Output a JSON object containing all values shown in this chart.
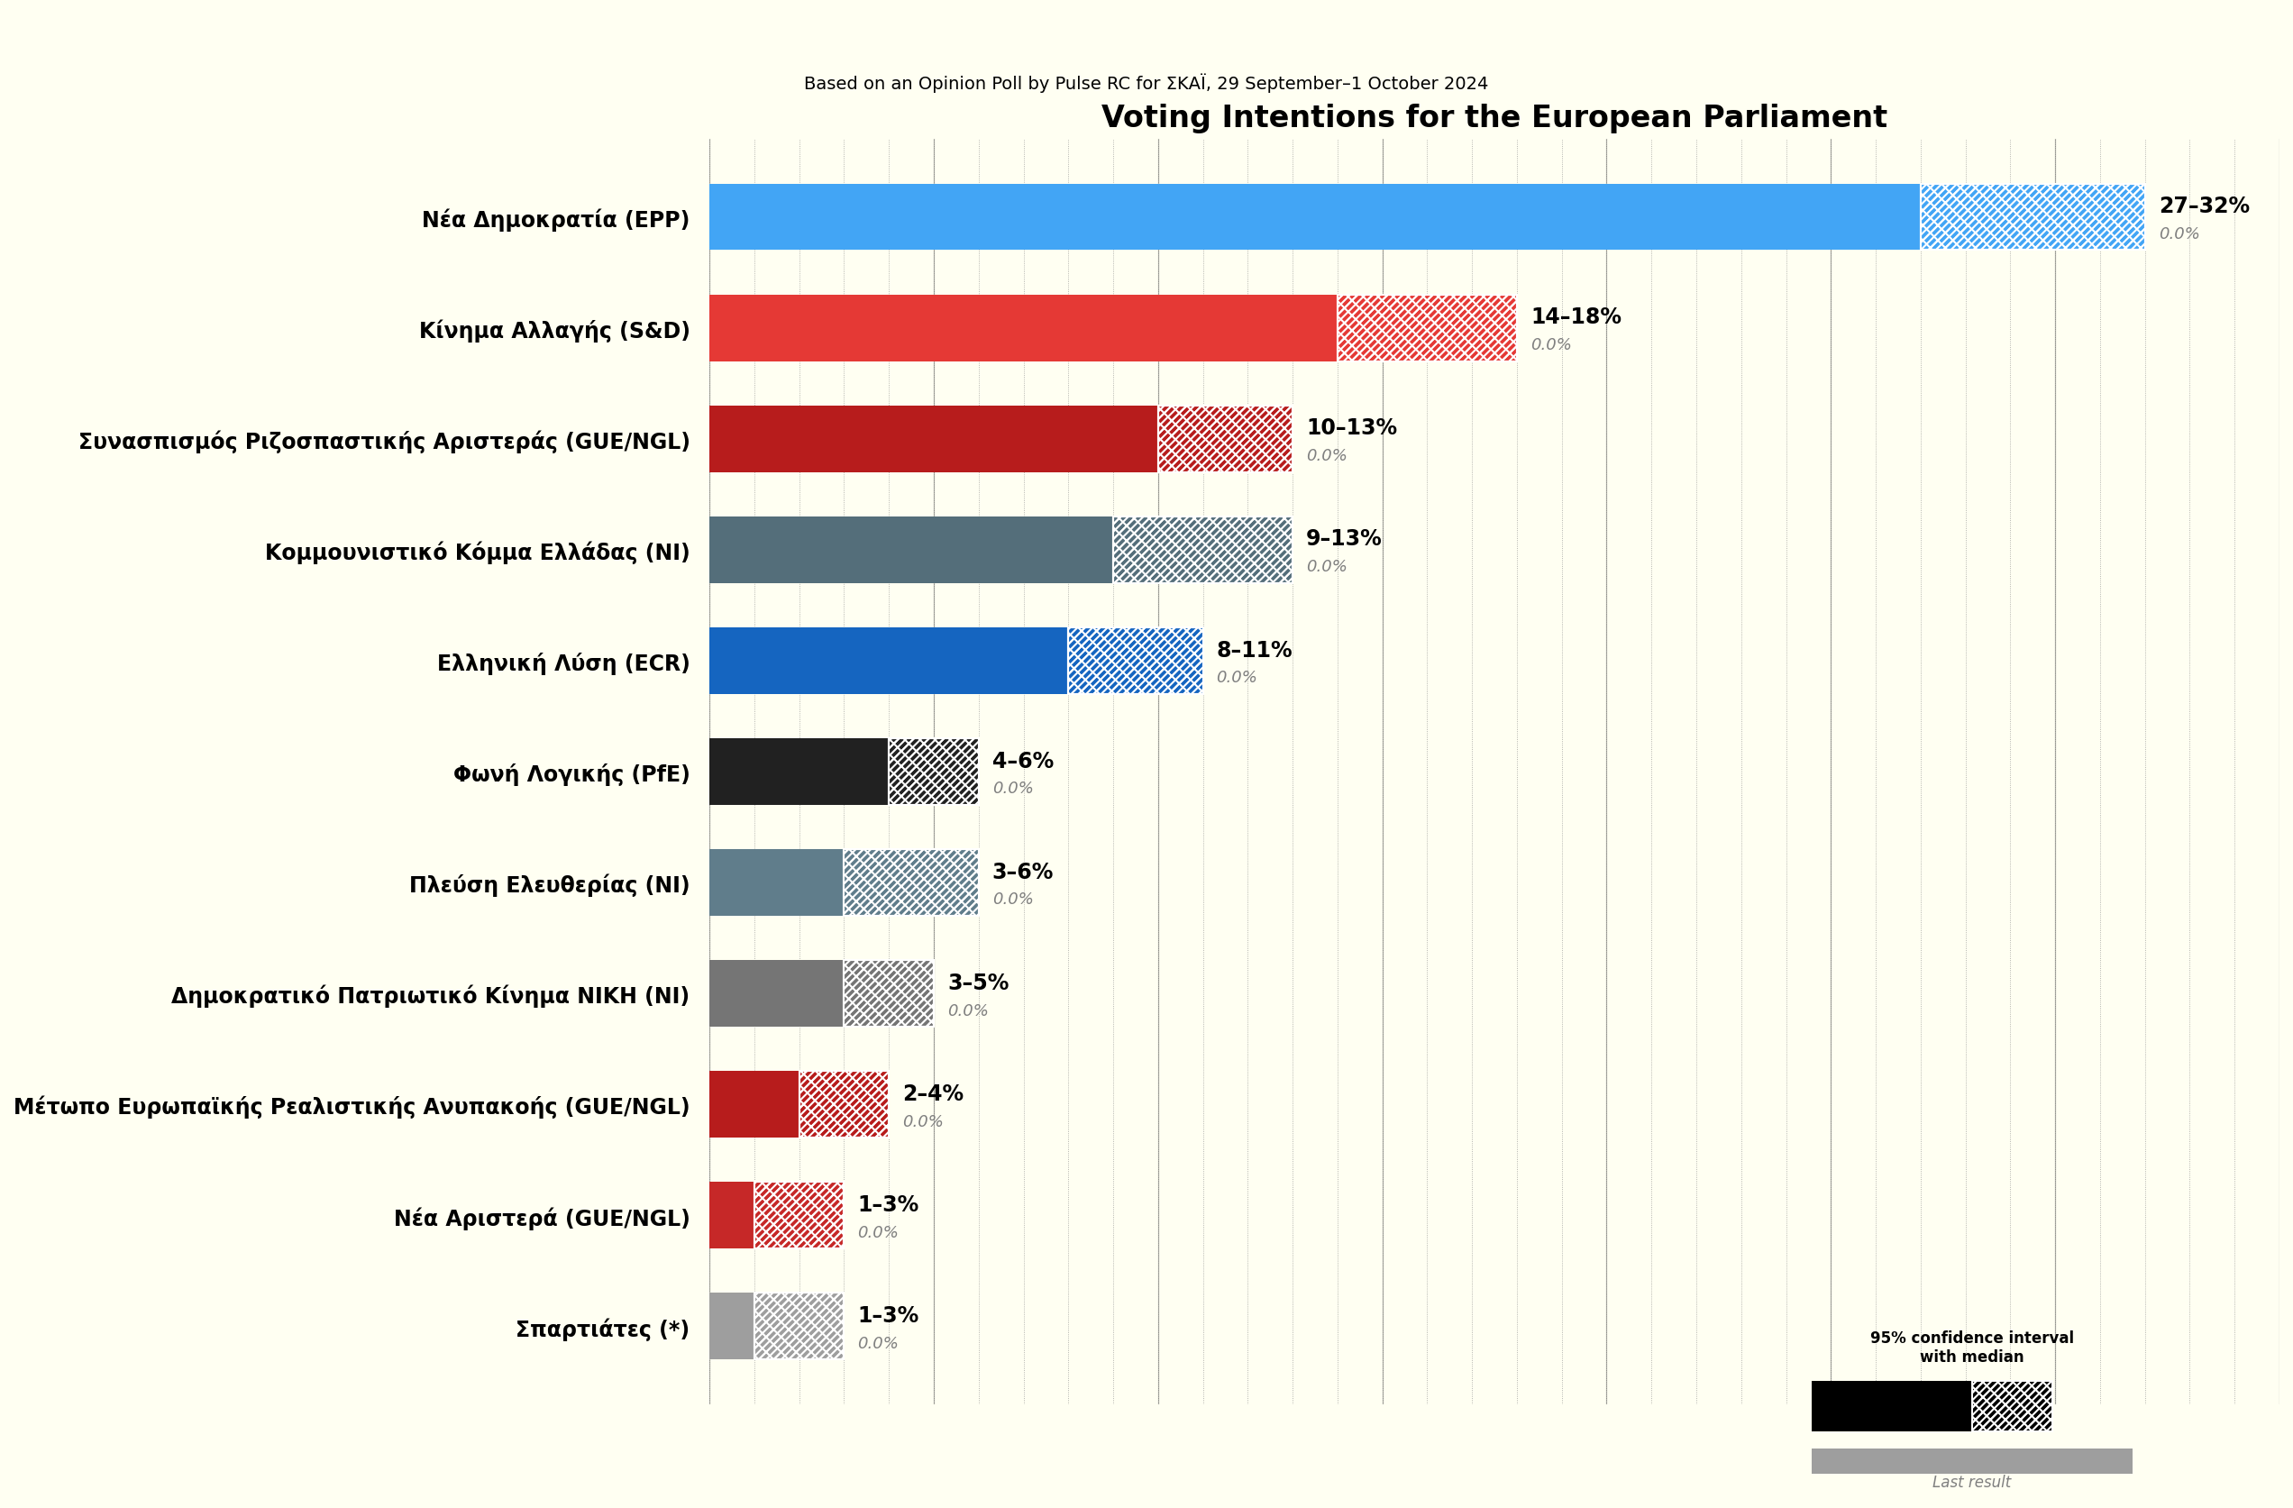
{
  "title": "Voting Intentions for the European Parliament",
  "subtitle": "Based on an Opinion Poll by Pulse RC for ΣΚΑΪ, 29 September–1 October 2024",
  "background_color": "#fffff2",
  "parties": [
    {
      "name": "Νέα Δημοκρατία (EPP)",
      "low": 27,
      "high": 32,
      "median": 29.5,
      "last": 0.0,
      "color": "#42a5f5",
      "hatch_color": "#42a5f5",
      "label": "27–32%"
    },
    {
      "name": "Κίνημα Αλλαγής (S&D)",
      "low": 14,
      "high": 18,
      "median": 16,
      "last": 0.0,
      "color": "#e53935",
      "hatch_color": "#e53935",
      "label": "14–18%"
    },
    {
      "name": "Συνασπισμός Ριζοσπαστικής Αριστεράς (GUE/NGL)",
      "low": 10,
      "high": 13,
      "median": 11.5,
      "last": 0.0,
      "color": "#b71c1c",
      "hatch_color": "#b71c1c",
      "label": "10–13%"
    },
    {
      "name": "Κομμουνιστικό Κόμμα Ελλάδας (NI)",
      "low": 9,
      "high": 13,
      "median": 11,
      "last": 0.0,
      "color": "#546e7a",
      "hatch_color": "#546e7a",
      "label": "9–13%"
    },
    {
      "name": "Ελληνική Λύση (ECR)",
      "low": 8,
      "high": 11,
      "median": 9.5,
      "last": 0.0,
      "color": "#1565c0",
      "hatch_color": "#1565c0",
      "label": "8–11%"
    },
    {
      "name": "Φωνή Λογικής (PfE)",
      "low": 4,
      "high": 6,
      "median": 5,
      "last": 0.0,
      "color": "#212121",
      "hatch_color": "#212121",
      "label": "4–6%"
    },
    {
      "name": "Πλεύση Ελευθερίας (NI)",
      "low": 3,
      "high": 6,
      "median": 4.5,
      "last": 0.0,
      "color": "#607d8b",
      "hatch_color": "#607d8b",
      "label": "3–6%"
    },
    {
      "name": "Δημοκρατικό Πατριωτικό Κίνημα ΝΙΚΗ (NI)",
      "low": 3,
      "high": 5,
      "median": 4,
      "last": 0.0,
      "color": "#757575",
      "hatch_color": "#757575",
      "label": "3–5%"
    },
    {
      "name": "Μέτωπο Ευρωπαϊκής Ρεαλιστικής Ανυπακοής (GUE/NGL)",
      "low": 2,
      "high": 4,
      "median": 3,
      "last": 0.0,
      "color": "#b71c1c",
      "hatch_color": "#b71c1c",
      "label": "2–4%"
    },
    {
      "name": "Νέα Αριστερά (GUE/NGL)",
      "low": 1,
      "high": 3,
      "median": 2,
      "last": 0.0,
      "color": "#c62828",
      "hatch_color": "#c62828",
      "label": "1–3%"
    },
    {
      "name": "Σπαρτιάτες (*)",
      "low": 1,
      "high": 3,
      "median": 2,
      "last": 0.0,
      "color": "#9e9e9e",
      "hatch_color": "#9e9e9e",
      "label": "1–3%"
    }
  ],
  "xlim": [
    0,
    35
  ],
  "bar_height": 0.6,
  "title_fontsize": 24,
  "subtitle_fontsize": 14,
  "label_fontsize": 17,
  "range_fontsize": 17,
  "last_fontsize": 13
}
